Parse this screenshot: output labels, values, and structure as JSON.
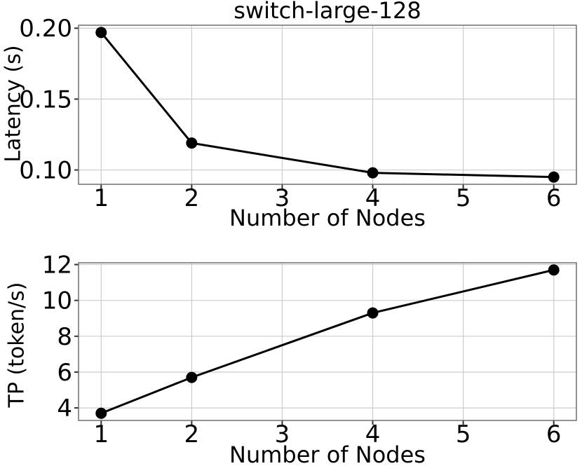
{
  "figure": {
    "background": "#ffffff",
    "text_color": "#000000",
    "grid_color": "#cccccc",
    "spine_color": "#6e6e6e",
    "tick_mark_color": "#333333",
    "line_color": "#000000",
    "marker_color": "#000000"
  },
  "chart_data": [
    {
      "type": "line",
      "title": "switch-large-128",
      "xlabel": "Number of Nodes",
      "ylabel": "Latency (s)",
      "x": [
        1,
        2,
        4,
        6
      ],
      "y": [
        0.197,
        0.119,
        0.098,
        0.095
      ],
      "xticks": [
        1,
        2,
        3,
        4,
        5,
        6
      ],
      "xtick_labels": [
        "1",
        "2",
        "3",
        "4",
        "5",
        "6"
      ],
      "yticks": [
        0.1,
        0.15,
        0.2
      ],
      "ytick_labels": [
        "0.10",
        "0.15",
        "0.20"
      ],
      "xlim": [
        0.75,
        6.25
      ],
      "ylim": [
        0.0899,
        0.2021
      ],
      "grid": true,
      "legend": null,
      "marker": "circle",
      "series_name": "latency"
    },
    {
      "type": "line",
      "title": "",
      "xlabel": "Number of Nodes",
      "ylabel": "TP (token/s)",
      "x": [
        1,
        2,
        4,
        6
      ],
      "y": [
        3.7,
        5.7,
        9.3,
        11.7
      ],
      "xticks": [
        1,
        2,
        3,
        4,
        5,
        6
      ],
      "xtick_labels": [
        "1",
        "2",
        "3",
        "4",
        "5",
        "6"
      ],
      "yticks": [
        4,
        6,
        8,
        10,
        12
      ],
      "ytick_labels": [
        "4",
        "6",
        "8",
        "10",
        "12"
      ],
      "xlim": [
        0.75,
        6.25
      ],
      "ylim": [
        3.3,
        12.1
      ],
      "grid": true,
      "legend": null,
      "marker": "circle",
      "series_name": "throughput"
    }
  ]
}
